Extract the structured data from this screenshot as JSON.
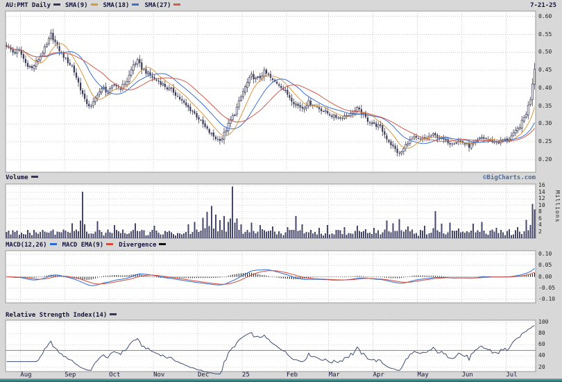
{
  "header": {
    "title": "AU:PMT Daily",
    "title_swatch_color": "#33335c",
    "date": "7-21-25",
    "series_legend": [
      {
        "label": "SMA(9)",
        "color": "#d9973d"
      },
      {
        "label": "SMA(18)",
        "color": "#3b6fd4"
      },
      {
        "label": "SMA(27)",
        "color": "#d45a4a"
      }
    ]
  },
  "watermark": "©BigCharts.com",
  "x_axis": {
    "month_labels": [
      "Aug",
      "Sep",
      "Oct",
      "Nov",
      "Dec",
      "25",
      "Feb",
      "Mar",
      "Apr",
      "May",
      "Jun",
      "Jul"
    ],
    "month_start_days": [
      7,
      28,
      49,
      70,
      91,
      112,
      133,
      153,
      174,
      195,
      216,
      237
    ],
    "total_days": 251
  },
  "price_panel": {
    "tick_labels": [
      "0.60",
      "0.55",
      "0.50",
      "0.45",
      "0.40",
      "0.35",
      "0.30",
      "0.25",
      "0.20"
    ],
    "tick_values": [
      0.6,
      0.55,
      0.5,
      0.45,
      0.4,
      0.35,
      0.3,
      0.25,
      0.2
    ],
    "range": [
      0.165,
      0.615
    ],
    "candle_color": "#3a3a58"
  },
  "volume_panel": {
    "label": "Volume",
    "swatch_color": "#33335c",
    "unit_label": "Millions",
    "tick_values": [
      16,
      14,
      12,
      10,
      8,
      6,
      4,
      2
    ],
    "range": [
      0,
      16.5
    ],
    "bar_color": "#44466a"
  },
  "macd_panel": {
    "legend": [
      {
        "label": "MACD(12,26)",
        "color": "#2d6bd4"
      },
      {
        "label": "MACD EMA(9)",
        "color": "#d44a3a"
      },
      {
        "label": "Divergence",
        "color": "#111111"
      }
    ],
    "tick_labels": [
      "0.10",
      "0.05",
      "0.00",
      "-0.05",
      "-0.10"
    ],
    "tick_values": [
      0.1,
      0.05,
      0.0,
      -0.05,
      -0.1
    ],
    "range": [
      -0.115,
      0.115
    ]
  },
  "rsi_panel": {
    "label": "Relative Strength Index(14)",
    "swatch_color": "#33335c",
    "tick_values": [
      100,
      80,
      60,
      40,
      20
    ],
    "range": [
      12,
      104
    ],
    "mid_line": 50,
    "line_color": "#3d4d74"
  },
  "chart_data": [
    {
      "panel": "price",
      "type": "candlestick",
      "title": "AU:PMT Daily",
      "ylim": [
        0.165,
        0.615
      ],
      "yticks": [
        0.2,
        0.25,
        0.3,
        0.35,
        0.4,
        0.45,
        0.5,
        0.55,
        0.6
      ],
      "x_month_ticks": [
        "Aug",
        "Sep",
        "Oct",
        "Nov",
        "Dec",
        "25",
        "Feb",
        "Mar",
        "Apr",
        "May",
        "Jun",
        "Jul"
      ],
      "overlays": [
        "SMA(9)",
        "SMA(18)",
        "SMA(27)"
      ],
      "close_keyframes": [
        [
          0,
          0.52
        ],
        [
          3,
          0.5
        ],
        [
          6,
          0.505
        ],
        [
          9,
          0.47
        ],
        [
          12,
          0.455
        ],
        [
          16,
          0.49
        ],
        [
          19,
          0.52
        ],
        [
          21,
          0.55
        ],
        [
          24,
          0.515
        ],
        [
          28,
          0.48
        ],
        [
          31,
          0.46
        ],
        [
          34,
          0.415
        ],
        [
          37,
          0.365
        ],
        [
          40,
          0.345
        ],
        [
          43,
          0.385
        ],
        [
          46,
          0.4
        ],
        [
          48,
          0.385
        ],
        [
          51,
          0.41
        ],
        [
          54,
          0.4
        ],
        [
          57,
          0.42
        ],
        [
          60,
          0.465
        ],
        [
          62,
          0.475
        ],
        [
          64,
          0.455
        ],
        [
          67,
          0.44
        ],
        [
          70,
          0.425
        ],
        [
          73,
          0.415
        ],
        [
          76,
          0.4
        ],
        [
          79,
          0.39
        ],
        [
          82,
          0.37
        ],
        [
          85,
          0.35
        ],
        [
          88,
          0.335
        ],
        [
          91,
          0.315
        ],
        [
          94,
          0.29
        ],
        [
          97,
          0.27
        ],
        [
          100,
          0.255
        ],
        [
          102,
          0.26
        ],
        [
          104,
          0.285
        ],
        [
          106,
          0.31
        ],
        [
          108,
          0.33
        ],
        [
          110,
          0.36
        ],
        [
          112,
          0.39
        ],
        [
          114,
          0.415
        ],
        [
          116,
          0.435
        ],
        [
          118,
          0.425
        ],
        [
          120,
          0.43
        ],
        [
          122,
          0.445
        ],
        [
          124,
          0.435
        ],
        [
          126,
          0.42
        ],
        [
          128,
          0.415
        ],
        [
          130,
          0.405
        ],
        [
          132,
          0.39
        ],
        [
          134,
          0.375
        ],
        [
          136,
          0.36
        ],
        [
          138,
          0.35
        ],
        [
          140,
          0.345
        ],
        [
          143,
          0.36
        ],
        [
          146,
          0.35
        ],
        [
          149,
          0.34
        ],
        [
          152,
          0.33
        ],
        [
          155,
          0.32
        ],
        [
          158,
          0.318
        ],
        [
          161,
          0.325
        ],
        [
          164,
          0.33
        ],
        [
          166,
          0.342
        ],
        [
          168,
          0.33
        ],
        [
          171,
          0.31
        ],
        [
          174,
          0.3
        ],
        [
          177,
          0.29
        ],
        [
          180,
          0.26
        ],
        [
          183,
          0.235
        ],
        [
          186,
          0.215
        ],
        [
          188,
          0.23
        ],
        [
          190,
          0.25
        ],
        [
          193,
          0.26
        ],
        [
          196,
          0.255
        ],
        [
          199,
          0.262
        ],
        [
          202,
          0.268
        ],
        [
          205,
          0.262
        ],
        [
          208,
          0.252
        ],
        [
          211,
          0.248
        ],
        [
          214,
          0.252
        ],
        [
          217,
          0.246
        ],
        [
          219,
          0.238
        ],
        [
          222,
          0.248
        ],
        [
          225,
          0.262
        ],
        [
          228,
          0.256
        ],
        [
          231,
          0.25
        ],
        [
          234,
          0.252
        ],
        [
          237,
          0.256
        ],
        [
          240,
          0.27
        ],
        [
          242,
          0.285
        ],
        [
          244,
          0.305
        ],
        [
          246,
          0.33
        ],
        [
          248,
          0.37
        ],
        [
          249,
          0.415
        ],
        [
          250,
          0.455
        ]
      ]
    },
    {
      "panel": "volume",
      "type": "bar",
      "title": "Volume",
      "unit": "Millions",
      "ylim": [
        0,
        16.5
      ],
      "yticks": [
        2,
        4,
        6,
        8,
        10,
        12,
        14,
        16
      ],
      "base_range_millions": [
        0.7,
        2.9
      ],
      "spikes": [
        [
          31,
          4.5
        ],
        [
          36,
          14.2
        ],
        [
          43,
          5.2
        ],
        [
          51,
          4.0
        ],
        [
          61,
          4.6
        ],
        [
          70,
          3.8
        ],
        [
          86,
          4.2
        ],
        [
          89,
          5.0
        ],
        [
          93,
          6.2
        ],
        [
          95,
          8.0
        ],
        [
          97,
          9.8
        ],
        [
          99,
          7.2
        ],
        [
          101,
          5.5
        ],
        [
          103,
          6.8
        ],
        [
          105,
          5.0
        ],
        [
          107,
          15.8
        ],
        [
          109,
          6.0
        ],
        [
          111,
          4.2
        ],
        [
          116,
          4.8
        ],
        [
          120,
          4.0
        ],
        [
          126,
          3.6
        ],
        [
          133,
          3.4
        ],
        [
          137,
          6.8
        ],
        [
          140,
          4.2
        ],
        [
          148,
          3.2
        ],
        [
          152,
          4.0
        ],
        [
          160,
          3.4
        ],
        [
          166,
          3.8
        ],
        [
          174,
          3.2
        ],
        [
          180,
          5.4
        ],
        [
          183,
          4.6
        ],
        [
          186,
          5.8
        ],
        [
          190,
          3.6
        ],
        [
          198,
          3.8
        ],
        [
          203,
          8.2
        ],
        [
          206,
          4.4
        ],
        [
          210,
          4.8
        ],
        [
          214,
          3.0
        ],
        [
          221,
          4.4
        ],
        [
          225,
          5.0
        ],
        [
          232,
          3.2
        ],
        [
          238,
          2.8
        ],
        [
          242,
          3.4
        ],
        [
          246,
          5.6
        ],
        [
          249,
          10.5
        ],
        [
          250,
          8.8
        ]
      ]
    },
    {
      "panel": "macd",
      "type": "line",
      "title": "MACD(12,26)",
      "series": [
        "MACD(12,26)",
        "MACD EMA(9)",
        "Divergence histogram"
      ],
      "ylim": [
        -0.115,
        0.115
      ],
      "yticks": [
        -0.1,
        -0.05,
        0.0,
        0.05,
        0.1
      ],
      "derived_from": "close prices (EMA12-EMA26, EMA9 signal, divergence bars)"
    },
    {
      "panel": "rsi",
      "type": "line",
      "title": "Relative Strength Index(14)",
      "ylim": [
        12,
        104
      ],
      "yticks": [
        20,
        40,
        60,
        80,
        100
      ],
      "mid_line": 50,
      "derived_from": "close prices (Wilder RSI 14)"
    }
  ]
}
